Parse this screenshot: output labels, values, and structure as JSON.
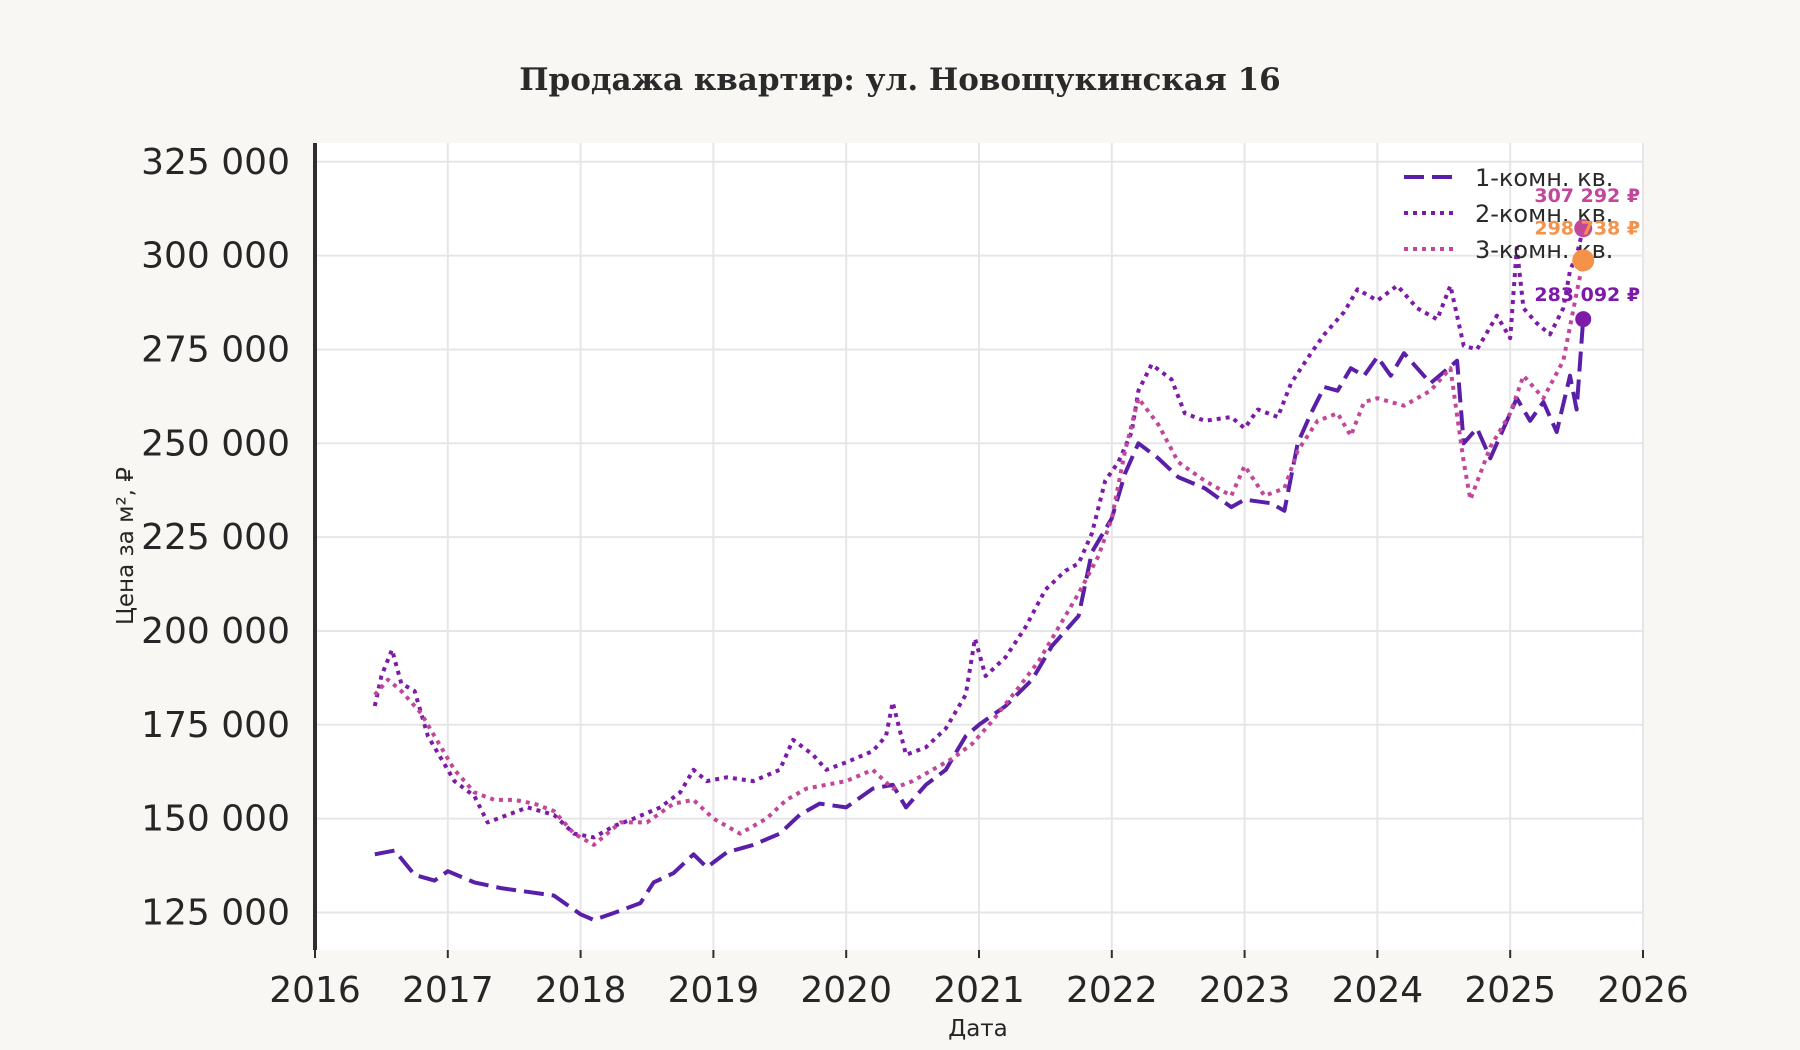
{
  "chart_data": {
    "type": "line",
    "title": "Продажа квартир: ул. Новощукинская 16",
    "xlabel": "Дата",
    "ylabel": "Цена за м², ₽",
    "xlim": [
      2016,
      2026
    ],
    "ylim": [
      115000,
      330000
    ],
    "x_ticks": [
      "2016",
      "2017",
      "2018",
      "2019",
      "2020",
      "2021",
      "2022",
      "2023",
      "2024",
      "2025",
      "2026"
    ],
    "y_ticks": [
      "125 000",
      "150 000",
      "175 000",
      "200 000",
      "225 000",
      "250 000",
      "275 000",
      "300 000",
      "325 000"
    ],
    "y_tick_values": [
      125000,
      150000,
      175000,
      200000,
      225000,
      250000,
      275000,
      300000,
      325000
    ],
    "grid": true,
    "legend_position": "top-right",
    "series": [
      {
        "name": "1-комн. кв.",
        "color": "#5a1fa8",
        "dash": "dashed",
        "points": [
          [
            2016.45,
            140500
          ],
          [
            2016.6,
            141500
          ],
          [
            2016.75,
            135000
          ],
          [
            2016.9,
            133500
          ],
          [
            2017.0,
            136000
          ],
          [
            2017.2,
            133000
          ],
          [
            2017.4,
            131500
          ],
          [
            2017.6,
            130500
          ],
          [
            2017.8,
            129500
          ],
          [
            2017.9,
            127000
          ],
          [
            2018.0,
            124500
          ],
          [
            2018.1,
            123000
          ],
          [
            2018.3,
            125500
          ],
          [
            2018.45,
            127500
          ],
          [
            2018.55,
            133000
          ],
          [
            2018.7,
            135500
          ],
          [
            2018.85,
            140500
          ],
          [
            2018.95,
            137000
          ],
          [
            2019.1,
            141000
          ],
          [
            2019.3,
            143000
          ],
          [
            2019.5,
            146000
          ],
          [
            2019.65,
            151000
          ],
          [
            2019.8,
            154000
          ],
          [
            2020.0,
            153000
          ],
          [
            2020.2,
            158000
          ],
          [
            2020.35,
            159000
          ],
          [
            2020.45,
            153000
          ],
          [
            2020.6,
            159000
          ],
          [
            2020.75,
            163000
          ],
          [
            2020.9,
            172000
          ],
          [
            2021.0,
            175000
          ],
          [
            2021.2,
            180000
          ],
          [
            2021.4,
            187000
          ],
          [
            2021.55,
            196000
          ],
          [
            2021.75,
            204000
          ],
          [
            2021.85,
            221000
          ],
          [
            2022.0,
            230000
          ],
          [
            2022.1,
            242000
          ],
          [
            2022.2,
            250000
          ],
          [
            2022.35,
            246000
          ],
          [
            2022.5,
            241000
          ],
          [
            2022.7,
            238000
          ],
          [
            2022.9,
            233000
          ],
          [
            2023.0,
            235000
          ],
          [
            2023.2,
            234000
          ],
          [
            2023.3,
            232000
          ],
          [
            2023.4,
            250000
          ],
          [
            2023.5,
            258000
          ],
          [
            2023.6,
            265000
          ],
          [
            2023.7,
            264000
          ],
          [
            2023.8,
            270000
          ],
          [
            2023.9,
            268000
          ],
          [
            2024.0,
            273000
          ],
          [
            2024.1,
            268000
          ],
          [
            2024.2,
            274000
          ],
          [
            2024.3,
            270000
          ],
          [
            2024.4,
            266000
          ],
          [
            2024.5,
            269000
          ],
          [
            2024.6,
            272000
          ],
          [
            2024.65,
            250000
          ],
          [
            2024.75,
            254000
          ],
          [
            2024.85,
            246000
          ],
          [
            2024.95,
            254000
          ],
          [
            2025.05,
            262000
          ],
          [
            2025.15,
            256000
          ],
          [
            2025.25,
            261000
          ],
          [
            2025.35,
            253000
          ],
          [
            2025.45,
            268000
          ],
          [
            2025.5,
            259000
          ],
          [
            2025.55,
            283092
          ]
        ],
        "last_value_label": "283 092 ₽",
        "last_value": 283092
      },
      {
        "name": "2-комн. кв.",
        "color": "#7d1aa8",
        "dash": "dotted",
        "points": [
          [
            2016.45,
            180000
          ],
          [
            2016.5,
            188000
          ],
          [
            2016.58,
            195000
          ],
          [
            2016.65,
            186000
          ],
          [
            2016.75,
            184000
          ],
          [
            2016.85,
            172000
          ],
          [
            2016.95,
            166000
          ],
          [
            2017.05,
            160000
          ],
          [
            2017.2,
            156000
          ],
          [
            2017.3,
            149000
          ],
          [
            2017.45,
            151000
          ],
          [
            2017.6,
            153000
          ],
          [
            2017.8,
            151000
          ],
          [
            2017.95,
            146000
          ],
          [
            2018.1,
            145000
          ],
          [
            2018.25,
            148000
          ],
          [
            2018.4,
            150000
          ],
          [
            2018.6,
            153000
          ],
          [
            2018.75,
            157000
          ],
          [
            2018.85,
            163000
          ],
          [
            2018.95,
            160000
          ],
          [
            2019.1,
            161000
          ],
          [
            2019.3,
            160000
          ],
          [
            2019.5,
            163000
          ],
          [
            2019.6,
            171000
          ],
          [
            2019.75,
            167000
          ],
          [
            2019.85,
            163000
          ],
          [
            2020.0,
            165000
          ],
          [
            2020.2,
            168000
          ],
          [
            2020.3,
            172000
          ],
          [
            2020.35,
            181000
          ],
          [
            2020.45,
            167000
          ],
          [
            2020.6,
            169000
          ],
          [
            2020.75,
            174000
          ],
          [
            2020.9,
            183000
          ],
          [
            2020.97,
            198000
          ],
          [
            2021.05,
            188000
          ],
          [
            2021.2,
            193000
          ],
          [
            2021.35,
            201000
          ],
          [
            2021.5,
            211000
          ],
          [
            2021.65,
            216000
          ],
          [
            2021.75,
            218000
          ],
          [
            2021.85,
            226000
          ],
          [
            2021.95,
            240000
          ],
          [
            2022.05,
            245000
          ],
          [
            2022.15,
            253000
          ],
          [
            2022.2,
            264000
          ],
          [
            2022.3,
            271000
          ],
          [
            2022.45,
            267000
          ],
          [
            2022.55,
            258000
          ],
          [
            2022.7,
            256000
          ],
          [
            2022.9,
            257000
          ],
          [
            2023.0,
            254000
          ],
          [
            2023.1,
            259000
          ],
          [
            2023.25,
            257000
          ],
          [
            2023.35,
            266000
          ],
          [
            2023.5,
            274000
          ],
          [
            2023.6,
            279000
          ],
          [
            2023.75,
            285000
          ],
          [
            2023.85,
            291000
          ],
          [
            2024.0,
            288000
          ],
          [
            2024.15,
            292000
          ],
          [
            2024.3,
            286000
          ],
          [
            2024.45,
            283000
          ],
          [
            2024.55,
            292000
          ],
          [
            2024.65,
            276000
          ],
          [
            2024.75,
            275000
          ],
          [
            2024.9,
            284000
          ],
          [
            2025.0,
            278000
          ],
          [
            2025.05,
            302000
          ],
          [
            2025.1,
            286000
          ],
          [
            2025.2,
            282000
          ],
          [
            2025.3,
            279000
          ],
          [
            2025.4,
            286000
          ],
          [
            2025.45,
            296000
          ],
          [
            2025.5,
            300000
          ],
          [
            2025.55,
            307292
          ]
        ],
        "last_value_label": "307 292 ₽",
        "last_value": 307292
      },
      {
        "name": "3-комн. кв.",
        "color": "#c2479a",
        "dash": "dotted",
        "points": [
          [
            2016.45,
            183000
          ],
          [
            2016.55,
            187000
          ],
          [
            2016.65,
            184000
          ],
          [
            2016.8,
            178000
          ],
          [
            2016.9,
            172000
          ],
          [
            2017.05,
            163000
          ],
          [
            2017.2,
            157000
          ],
          [
            2017.35,
            155000
          ],
          [
            2017.5,
            155000
          ],
          [
            2017.65,
            154000
          ],
          [
            2017.8,
            152000
          ],
          [
            2017.95,
            146000
          ],
          [
            2018.1,
            143000
          ],
          [
            2018.3,
            149000
          ],
          [
            2018.5,
            149000
          ],
          [
            2018.7,
            154000
          ],
          [
            2018.85,
            155000
          ],
          [
            2019.0,
            150000
          ],
          [
            2019.2,
            146000
          ],
          [
            2019.4,
            150000
          ],
          [
            2019.55,
            155000
          ],
          [
            2019.7,
            158000
          ],
          [
            2019.85,
            159000
          ],
          [
            2020.0,
            160000
          ],
          [
            2020.2,
            163000
          ],
          [
            2020.35,
            158000
          ],
          [
            2020.5,
            160000
          ],
          [
            2020.65,
            163000
          ],
          [
            2020.8,
            166000
          ],
          [
            2020.95,
            170000
          ],
          [
            2021.1,
            176000
          ],
          [
            2021.3,
            185000
          ],
          [
            2021.45,
            192000
          ],
          [
            2021.6,
            201000
          ],
          [
            2021.75,
            210000
          ],
          [
            2021.9,
            220000
          ],
          [
            2022.0,
            230000
          ],
          [
            2022.1,
            248000
          ],
          [
            2022.2,
            262000
          ],
          [
            2022.35,
            255000
          ],
          [
            2022.5,
            245000
          ],
          [
            2022.7,
            240000
          ],
          [
            2022.9,
            236000
          ],
          [
            2023.0,
            244000
          ],
          [
            2023.15,
            236000
          ],
          [
            2023.3,
            238000
          ],
          [
            2023.4,
            248000
          ],
          [
            2023.55,
            256000
          ],
          [
            2023.7,
            258000
          ],
          [
            2023.8,
            252000
          ],
          [
            2023.9,
            261000
          ],
          [
            2024.0,
            262000
          ],
          [
            2024.2,
            260000
          ],
          [
            2024.4,
            264000
          ],
          [
            2024.55,
            270000
          ],
          [
            2024.65,
            245000
          ],
          [
            2024.7,
            235000
          ],
          [
            2024.85,
            249000
          ],
          [
            2025.0,
            258000
          ],
          [
            2025.1,
            268000
          ],
          [
            2025.25,
            262000
          ],
          [
            2025.4,
            272000
          ],
          [
            2025.5,
            290000
          ],
          [
            2025.55,
            298738
          ]
        ],
        "last_value_label": "298 738 ₽",
        "last_value": 298738
      }
    ],
    "end_markers": [
      {
        "series": "2-комн. кв.",
        "color": "#c2479a",
        "value": 307292,
        "label": "307 292 ₽"
      },
      {
        "series": "3-комн. кв.",
        "color": "#f5924a",
        "value": 298738,
        "label": "298 738 ₽"
      },
      {
        "series": "1-комн. кв.",
        "color": "#7d1aa8",
        "value": 283092,
        "label": "283 092 ₽"
      }
    ]
  }
}
